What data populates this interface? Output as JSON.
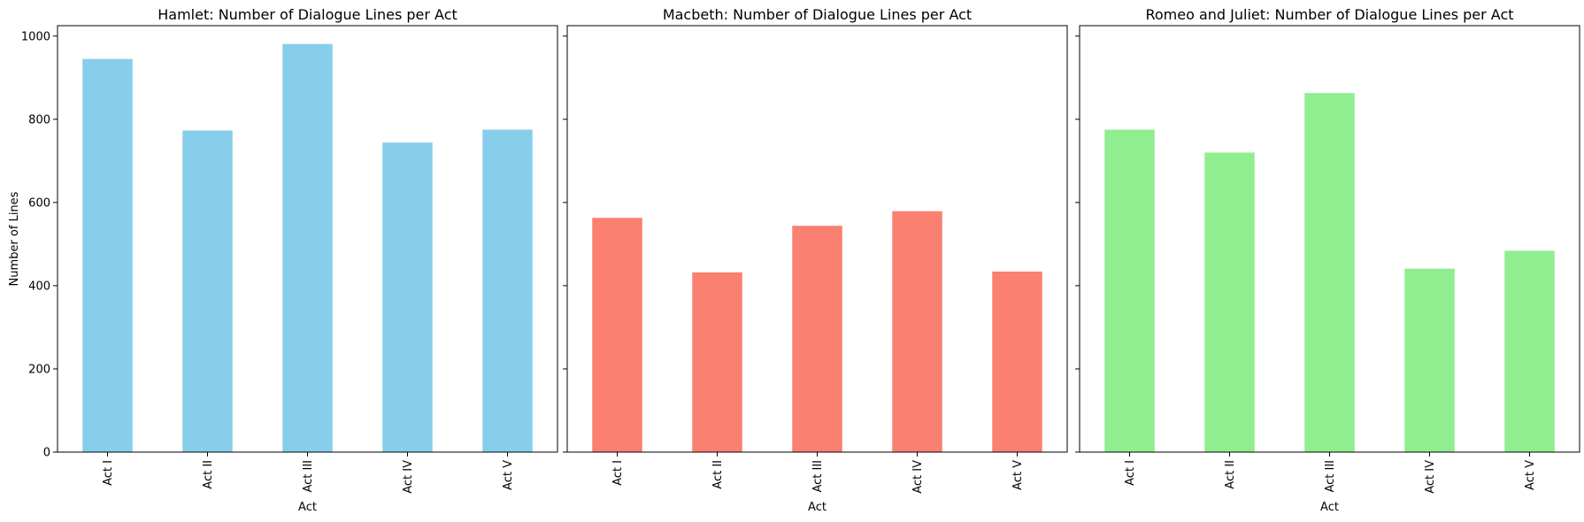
{
  "chart_data": [
    {
      "type": "bar",
      "title": "Hamlet: Number of Dialogue Lines per Act",
      "xlabel": "Act",
      "ylabel": "Number of Lines",
      "categories": [
        "Act I",
        "Act II",
        "Act III",
        "Act IV",
        "Act V"
      ],
      "values": [
        945,
        773,
        981,
        744,
        775
      ],
      "color": "#87ceeb",
      "ylim": [
        0,
        1025
      ],
      "yticks": [
        0,
        200,
        400,
        600,
        800,
        1000
      ]
    },
    {
      "type": "bar",
      "title": "Macbeth: Number of Dialogue Lines per Act",
      "xlabel": "Act",
      "ylabel": "",
      "categories": [
        "Act I",
        "Act II",
        "Act III",
        "Act IV",
        "Act V"
      ],
      "values": [
        563,
        432,
        544,
        579,
        434
      ],
      "color": "#fa8072",
      "ylim": [
        0,
        1025
      ],
      "yticks": [
        0,
        200,
        400,
        600,
        800,
        1000
      ]
    },
    {
      "type": "bar",
      "title": "Romeo and Juliet: Number of Dialogue Lines per Act",
      "xlabel": "Act",
      "ylabel": "",
      "categories": [
        "Act I",
        "Act II",
        "Act III",
        "Act IV",
        "Act V"
      ],
      "values": [
        775,
        720,
        863,
        441,
        484
      ],
      "color": "#90ee90",
      "ylim": [
        0,
        1025
      ],
      "yticks": [
        0,
        200,
        400,
        600,
        800,
        1000
      ]
    }
  ]
}
